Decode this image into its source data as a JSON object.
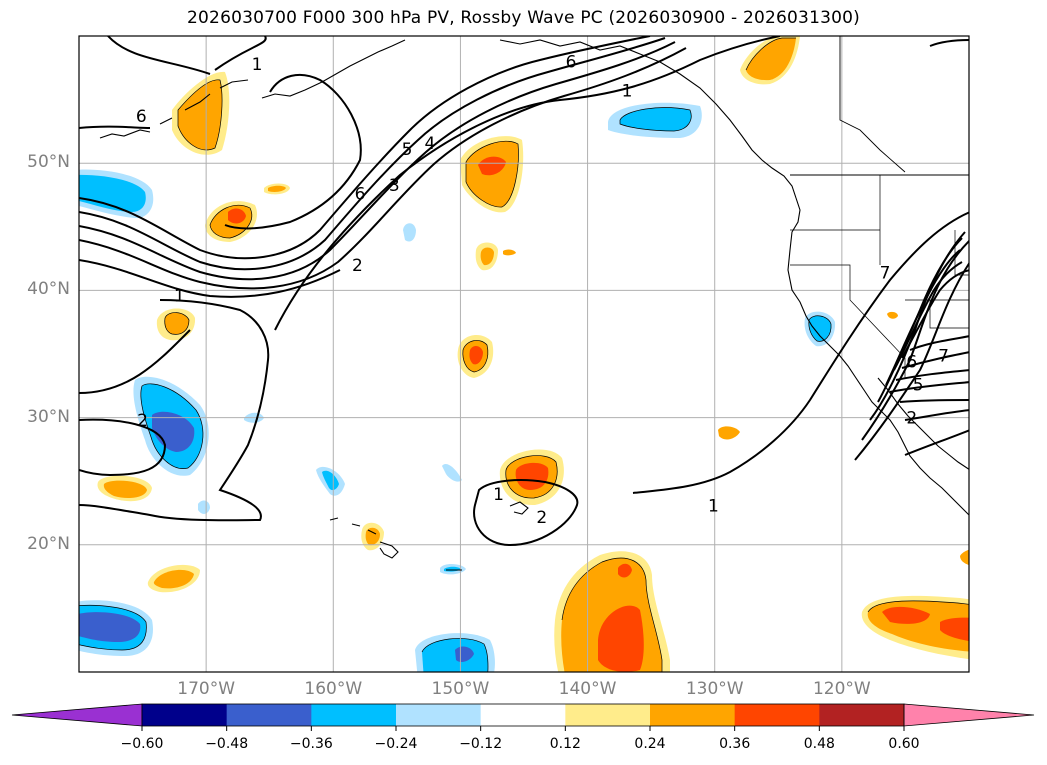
{
  "title": "2026030700 F000 300 hPa PV, Rossby Wave PC (2026030900 - 2026031300)",
  "map": {
    "lon_range": [
      -180,
      -110
    ],
    "lat_range": [
      10,
      60
    ],
    "lat_labels": [
      {
        "lat": 50,
        "text": "50°N"
      },
      {
        "lat": 40,
        "text": "40°N"
      },
      {
        "lat": 30,
        "text": "30°N"
      },
      {
        "lat": 20,
        "text": "20°N"
      }
    ],
    "lon_labels": [
      {
        "lon": -170,
        "text": "170°W"
      },
      {
        "lon": -160,
        "text": "160°W"
      },
      {
        "lon": -150,
        "text": "150°W"
      },
      {
        "lon": -140,
        "text": "140°W"
      },
      {
        "lon": -130,
        "text": "130°W"
      },
      {
        "lon": -120,
        "text": "120°W"
      }
    ],
    "gridline_color": "#b0b0b0",
    "contour_labels": [
      {
        "text": "1",
        "lon": -166,
        "lat": 57.8
      },
      {
        "text": "6",
        "lon": -175.1,
        "lat": 53.7
      },
      {
        "text": "6",
        "lon": -157.9,
        "lat": 47.6
      },
      {
        "text": "3",
        "lon": -155.2,
        "lat": 48.3
      },
      {
        "text": "2",
        "lon": -158.1,
        "lat": 42.0
      },
      {
        "text": "1",
        "lon": -172.1,
        "lat": 39.6
      },
      {
        "text": "5",
        "lon": -154.2,
        "lat": 51.1
      },
      {
        "text": "4",
        "lon": -152.4,
        "lat": 51.6
      },
      {
        "text": "6",
        "lon": -141.3,
        "lat": 58.0
      },
      {
        "text": "1",
        "lon": -136.9,
        "lat": 55.7
      },
      {
        "text": "2",
        "lon": -175.0,
        "lat": 29.8
      },
      {
        "text": "1",
        "lon": -147.0,
        "lat": 24.0
      },
      {
        "text": "2",
        "lon": -143.6,
        "lat": 22.2
      },
      {
        "text": "1",
        "lon": -130.1,
        "lat": 23.1
      },
      {
        "text": "7",
        "lon": -116.6,
        "lat": 41.4
      },
      {
        "text": "7",
        "lon": -112.0,
        "lat": 34.9
      },
      {
        "text": "6",
        "lon": -114.5,
        "lat": 34.4
      },
      {
        "text": "5",
        "lon": -114.0,
        "lat": 32.6
      },
      {
        "text": "2",
        "lon": -114.5,
        "lat": 30.0
      }
    ]
  },
  "colorbar": {
    "levels": [
      "−0.60",
      "−0.48",
      "−0.36",
      "−0.24",
      "−0.12",
      "0.12",
      "0.24",
      "0.36",
      "0.48",
      "0.60"
    ],
    "colors": [
      "#9a30d2",
      "#00008b",
      "#3a5fcd",
      "#00bfff",
      "#b0e2ff",
      "#ffffff",
      "#ffec8b",
      "#ffa500",
      "#ff4500",
      "#b22222",
      "#ff82ab"
    ]
  },
  "colors": {
    "pos_light": "#ffec8b",
    "pos_mid": "#ffa500",
    "pos_strong": "#ff4500",
    "neg_light": "#b0e2ff",
    "neg_mid": "#00bfff",
    "neg_strong": "#3a5fcd",
    "land_line": "#000000",
    "contour": "#000000"
  }
}
